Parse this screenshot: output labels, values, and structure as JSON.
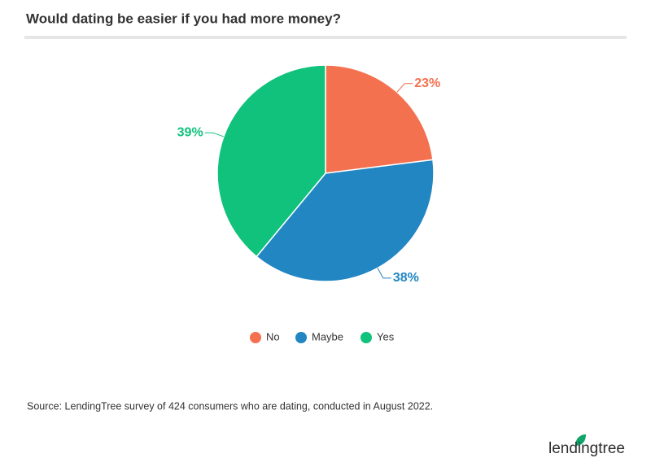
{
  "chart_data": {
    "type": "pie",
    "title": "Would dating be easier if you had more money?",
    "categories": [
      "No",
      "Maybe",
      "Yes"
    ],
    "values": [
      23,
      38,
      39
    ],
    "value_labels": [
      "23%",
      "38%",
      "39%"
    ],
    "colors": [
      "#f47150",
      "#2286c3",
      "#10c27b"
    ],
    "source": "Source: LendingTree survey of 424 consumers who are dating, conducted in August 2022.",
    "logo": "lendingtree"
  }
}
